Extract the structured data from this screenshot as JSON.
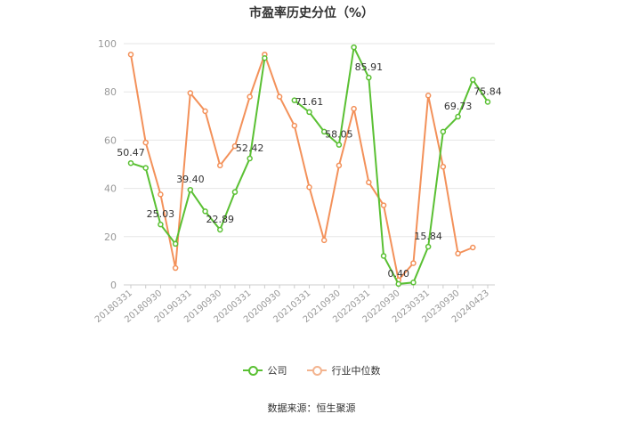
{
  "chart_data": {
    "type": "line",
    "title": "市盈率历史分位（%）",
    "ylim": [
      0,
      100
    ],
    "yticks": [
      0,
      20,
      40,
      60,
      80,
      100
    ],
    "x": [
      "20180331",
      "20180630",
      "20180930",
      "20181231",
      "20190331",
      "20190630",
      "20190930",
      "20191231",
      "20200331",
      "20200630",
      "20200930",
      "20201231",
      "20210331",
      "20210630",
      "20210930",
      "20211231",
      "20220331",
      "20220630",
      "20220930",
      "20221231",
      "20230331",
      "20230630",
      "20230930",
      "20231231",
      "20240423"
    ],
    "xtick_labels": [
      "20180331",
      "20180930",
      "20190331",
      "20190930",
      "20200331",
      "20200930",
      "20210331",
      "20210930",
      "20220331",
      "20220930",
      "20230331",
      "20230930",
      "20240423"
    ],
    "series": [
      {
        "name": "公司",
        "color": "#5ac033",
        "values": [
          50.47,
          48.5,
          25.03,
          17.0,
          39.4,
          30.5,
          22.89,
          38.5,
          52.42,
          94.0,
          null,
          76.5,
          71.61,
          63.5,
          58.05,
          98.5,
          85.91,
          12.0,
          0.4,
          1.0,
          15.84,
          63.5,
          69.73,
          85.0,
          75.84
        ],
        "labels": {
          "0": "50.47",
          "2": "25.03",
          "4": "39.40",
          "6": "22.89",
          "8": "52.42",
          "12": "71.61",
          "14": "58.05",
          "16": "85.91",
          "18": "0.40",
          "20": "15.84",
          "22": "69.73",
          "24": "75.84"
        }
      },
      {
        "name": "行业中位数",
        "color": "#f3915a",
        "values": [
          95.5,
          59.0,
          37.5,
          7.0,
          79.5,
          72.0,
          49.5,
          57.5,
          78.0,
          95.5,
          78.0,
          66.0,
          40.5,
          18.5,
          49.5,
          73.0,
          42.5,
          33.0,
          2.0,
          9.0,
          78.5,
          49.0,
          13.0,
          15.5,
          null
        ]
      }
    ]
  },
  "legend": {
    "company": "公司",
    "industry": "行业中位数"
  },
  "source": "数据来源：恒生聚源"
}
